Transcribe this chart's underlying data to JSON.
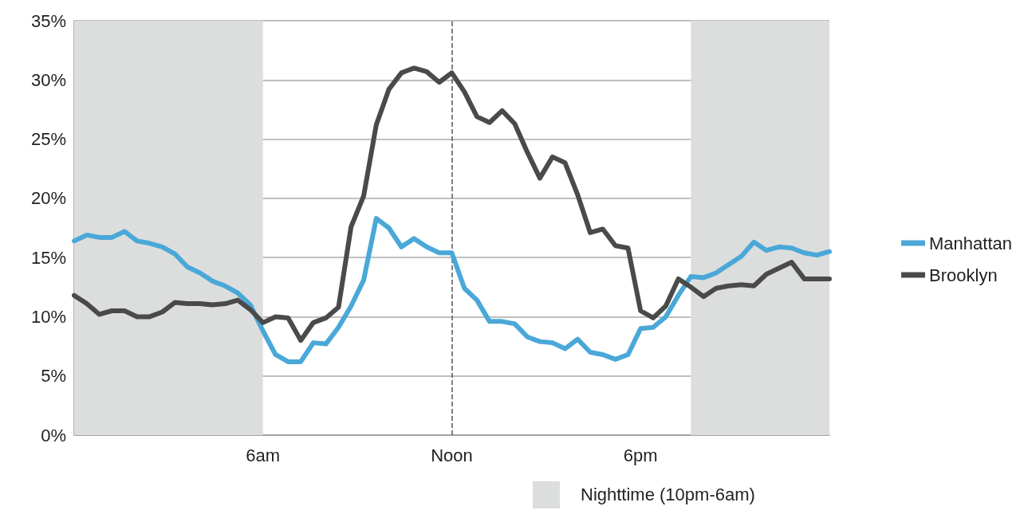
{
  "chart_data": {
    "type": "line",
    "ylim": [
      0,
      35
    ],
    "categories": [
      null,
      null,
      null,
      null,
      null,
      null,
      null,
      null,
      null,
      null,
      null,
      null,
      null,
      null,
      null,
      "6am",
      null,
      null,
      null,
      null,
      null,
      null,
      null,
      null,
      null,
      null,
      null,
      null,
      null,
      null,
      "Noon",
      null,
      null,
      null,
      null,
      null,
      null,
      null,
      null,
      null,
      null,
      null,
      null,
      null,
      null,
      "6pm",
      null,
      null,
      null,
      null,
      null,
      null,
      null,
      null,
      null,
      null,
      null,
      null,
      null,
      null,
      null
    ],
    "yticks": [
      {
        "value": 0,
        "label": "0%"
      },
      {
        "value": 5,
        "label": "5%"
      },
      {
        "value": 10,
        "label": "10%"
      },
      {
        "value": 15,
        "label": "15%"
      },
      {
        "value": 20,
        "label": "20%"
      },
      {
        "value": 25,
        "label": "25%"
      },
      {
        "value": 30,
        "label": "30%"
      },
      {
        "value": 35,
        "label": "35%"
      }
    ],
    "grid": "y",
    "legend": "right",
    "marker": "none",
    "line_style": "solid",
    "series": [
      {
        "name": "Manhattan",
        "color": "#4aa8d8",
        "values": [
          16.4,
          16.9,
          16.7,
          16.7,
          17.2,
          16.4,
          16.2,
          15.9,
          15.3,
          14.2,
          13.7,
          13.0,
          12.6,
          12.0,
          11.0,
          8.8,
          6.8,
          6.2,
          6.2,
          7.8,
          7.7,
          9.1,
          10.9,
          13.1,
          18.3,
          17.5,
          15.9,
          16.6,
          15.9,
          15.4,
          15.4,
          12.4,
          11.4,
          9.6,
          9.6,
          9.4,
          8.3,
          7.9,
          7.8,
          7.3,
          8.1,
          7.0,
          6.8,
          6.4,
          6.8,
          9.0,
          9.1,
          10.0,
          11.8,
          13.4,
          13.3,
          13.7,
          14.4,
          15.1,
          16.3,
          15.6,
          15.9,
          15.8,
          15.4,
          15.2,
          15.5
        ]
      },
      {
        "name": "Brooklyn",
        "color": "#4a4a4a",
        "values": [
          11.8,
          11.1,
          10.2,
          10.5,
          10.5,
          10.0,
          10.0,
          10.4,
          11.2,
          11.1,
          11.1,
          11.0,
          11.1,
          11.4,
          10.6,
          9.5,
          10.0,
          9.9,
          8.0,
          9.5,
          9.9,
          10.8,
          17.6,
          20.2,
          26.2,
          29.2,
          30.6,
          31.0,
          30.7,
          29.8,
          30.6,
          29.0,
          26.9,
          26.4,
          27.4,
          26.3,
          23.9,
          21.7,
          23.5,
          23.0,
          20.3,
          17.1,
          17.4,
          16.0,
          15.8,
          10.5,
          9.9,
          10.9,
          13.2,
          12.5,
          11.7,
          12.4,
          12.6,
          12.7,
          12.6,
          13.6,
          14.1,
          14.6,
          13.2,
          13.2,
          13.2
        ]
      }
    ],
    "ref_lines": [
      {
        "axis": "x",
        "value": "Noon",
        "color": "#555555",
        "line_style": "dashed"
      }
    ],
    "annotations": [
      "Nighttime (10pm-6am)"
    ]
  }
}
